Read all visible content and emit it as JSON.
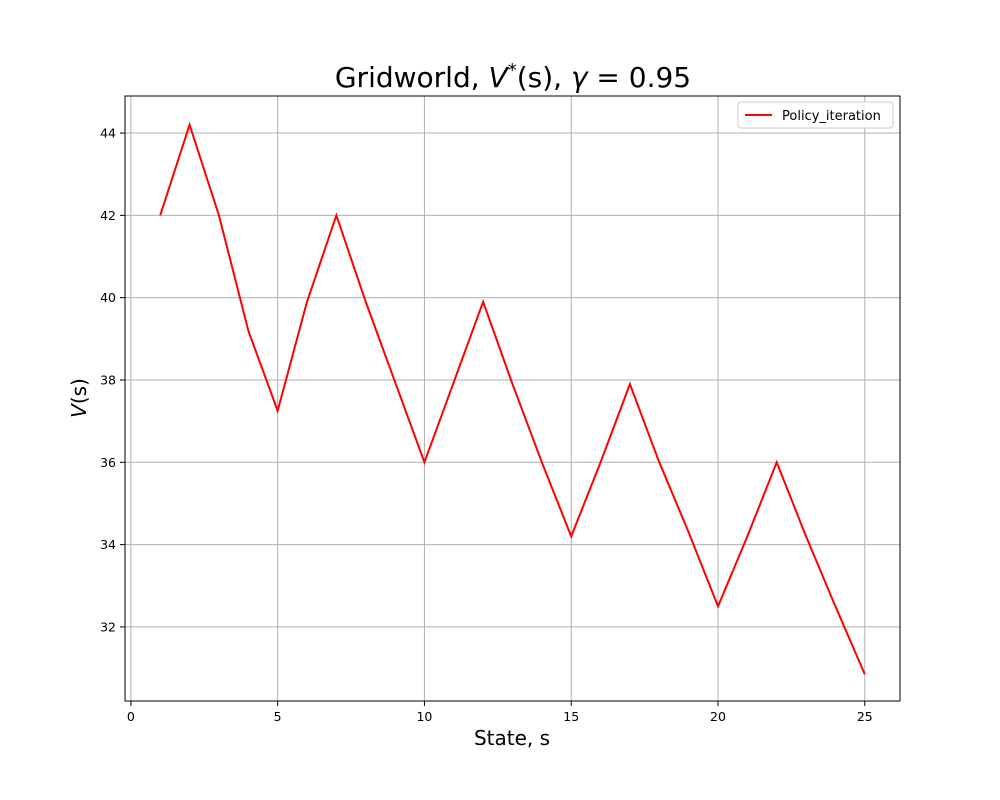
{
  "chart_data": {
    "type": "line",
    "title": {
      "prefix": "Gridworld, ",
      "v": "V",
      "star": "*",
      "arg": "(s)",
      "sep": ", ",
      "gamma": "γ",
      "eq": " = 0.95"
    },
    "xlabel": "State, s",
    "ylabel": {
      "v": "V",
      "arg": "(s)"
    },
    "xlim": [
      -0.2,
      26.2
    ],
    "ylim": [
      30.2,
      44.9
    ],
    "xticks": [
      0,
      5,
      10,
      15,
      20,
      25
    ],
    "yticks": [
      32,
      34,
      36,
      38,
      40,
      42,
      44
    ],
    "grid": true,
    "legend_position": "top-right",
    "series": [
      {
        "name": "Policy_iteration",
        "color": "#ff0000",
        "x": [
          1,
          2,
          3,
          4,
          5,
          6,
          7,
          8,
          9,
          10,
          11,
          12,
          13,
          14,
          15,
          16,
          17,
          18,
          19,
          20,
          21,
          22,
          23,
          24,
          25
        ],
        "y": [
          42.0,
          44.2,
          42.0,
          39.2,
          37.25,
          39.9,
          42.0,
          39.9,
          37.95,
          36.0,
          37.95,
          39.9,
          37.9,
          36.0,
          34.2,
          36.0,
          37.9,
          36.0,
          34.3,
          32.5,
          34.2,
          36.0,
          34.2,
          32.5,
          30.85
        ]
      }
    ]
  }
}
